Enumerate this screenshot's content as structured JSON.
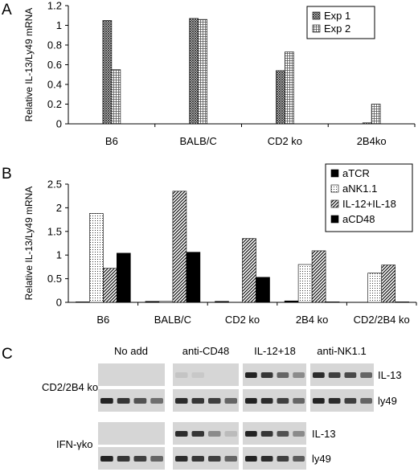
{
  "panels": {
    "a": "A",
    "b": "B",
    "c": "C"
  },
  "chart_data": [
    {
      "type": "bar",
      "panel": "A",
      "ylabel": "Relative IL-13/Ly49 mRNA",
      "xlabel": "",
      "ylim": [
        0,
        1.2
      ],
      "yticks": [
        "0",
        "0.2",
        "0.4",
        "0.6",
        "0.8",
        "1",
        "1.2"
      ],
      "categories": [
        "B6",
        "BALB/C",
        "CD2 ko",
        "2B4ko"
      ],
      "series": [
        {
          "name": "Exp 1",
          "values": [
            1.05,
            1.07,
            0.54,
            0.01
          ],
          "pattern": "crosshatch"
        },
        {
          "name": "Exp 2",
          "values": [
            0.55,
            1.06,
            0.73,
            0.2
          ],
          "pattern": "grid"
        }
      ],
      "legend_position": "top-right"
    },
    {
      "type": "bar",
      "panel": "B",
      "ylabel": "Relative IL-13/Ly49 mRNA",
      "xlabel": "",
      "ylim": [
        0,
        2.5
      ],
      "yticks": [
        "0",
        "0.5",
        "1",
        "1.5",
        "2",
        "2.5"
      ],
      "categories": [
        "B6",
        "BALB/C",
        "CD2 ko",
        "2B4 ko",
        "CD2/2B4 ko"
      ],
      "series": [
        {
          "name": "aTCR",
          "values": [
            0.01,
            0.02,
            0.02,
            0.03,
            0.0
          ],
          "pattern": "solid"
        },
        {
          "name": "aNK1.1",
          "values": [
            1.88,
            0.02,
            0.0,
            0.8,
            0.62
          ],
          "pattern": "dots"
        },
        {
          "name": "IL-12+IL-18",
          "values": [
            0.72,
            2.35,
            1.35,
            1.09,
            0.79
          ],
          "pattern": "diagonal"
        },
        {
          "name": "aCD48",
          "values": [
            1.04,
            1.06,
            0.53,
            0.01,
            0.01
          ],
          "pattern": "solid"
        }
      ],
      "legend_position": "top-right"
    }
  ],
  "gel": {
    "columns": [
      "No add",
      "anti-CD48",
      "IL-12+18",
      "anti-NK1.1"
    ],
    "groups": [
      "CD2/2B4 ko",
      "IFN-γko"
    ],
    "group1_rows": [
      "IL-13",
      "ly49"
    ],
    "group2_rows": [
      "IL-13",
      "ly49"
    ],
    "band_levels": {
      "g1_il13": [
        [
          0,
          0,
          0,
          0
        ],
        [
          0.1,
          0.08,
          0,
          0
        ],
        [
          0.95,
          0.85,
          0.6,
          0.4
        ],
        [
          0.9,
          0.8,
          0.75,
          0.6
        ]
      ],
      "g1_ly49": [
        [
          0.95,
          0.85,
          0.7,
          0.55
        ],
        [
          0.9,
          0.85,
          0.8,
          0.6
        ],
        [
          0.95,
          0.9,
          0.8,
          0.6
        ],
        [
          0.95,
          0.9,
          0.8,
          0.6
        ]
      ],
      "g2_il13": [
        [
          0,
          0,
          0,
          0
        ],
        [
          0.9,
          0.85,
          0.4,
          0.15
        ],
        [
          0.95,
          0.85,
          0.7,
          0.4
        ]
      ],
      "g2_ly49": [
        [
          0.95,
          0.85,
          0.8,
          0.6
        ],
        [
          0.9,
          0.85,
          0.8,
          0.6
        ],
        [
          0.95,
          0.9,
          0.8,
          0.65
        ]
      ]
    }
  }
}
